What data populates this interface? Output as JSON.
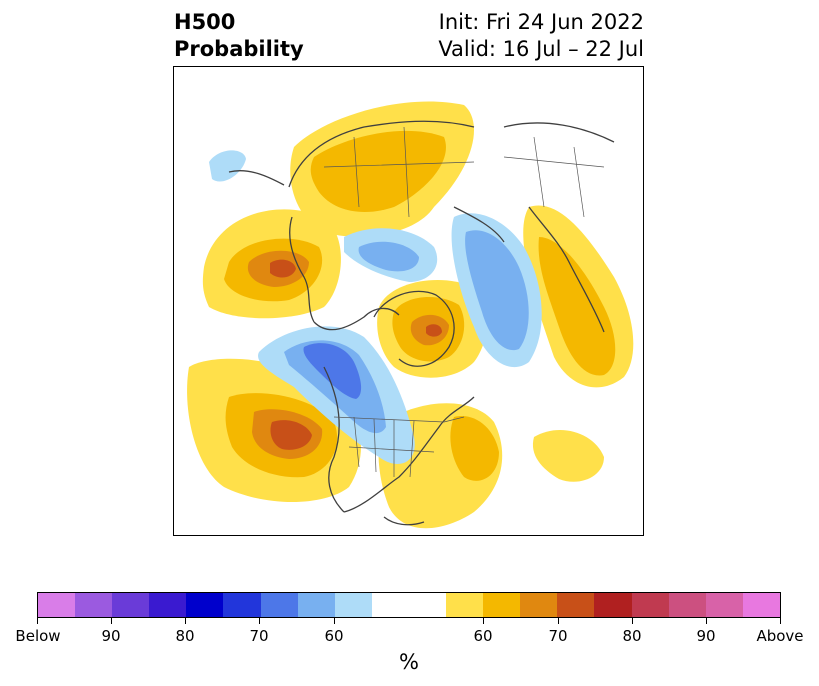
{
  "title": {
    "left_line1": "H500",
    "left_line2": "Probability",
    "right_line1": "Init: Fri 24 Jun 2022",
    "right_line2": "Valid: 16 Jul – 22 Jul"
  },
  "colorbar": {
    "unit": "%",
    "tick_labels": [
      "Below",
      "90",
      "80",
      "70",
      "60",
      "60",
      "70",
      "80",
      "90",
      "Above"
    ],
    "below_colors": [
      "#d97de8",
      "#9b5ae0",
      "#6a3bd8",
      "#3a1ad0",
      "#0000cc",
      "#2236db",
      "#4d77e8",
      "#78b0f0",
      "#aedcf8"
    ],
    "neutral_color": "#ffffff",
    "above_colors": [
      "#ffe04a",
      "#f4b800",
      "#e08810",
      "#c85018",
      "#b02020",
      "#c03a50",
      "#cc5080",
      "#d862a8",
      "#e878e0"
    ]
  }
}
